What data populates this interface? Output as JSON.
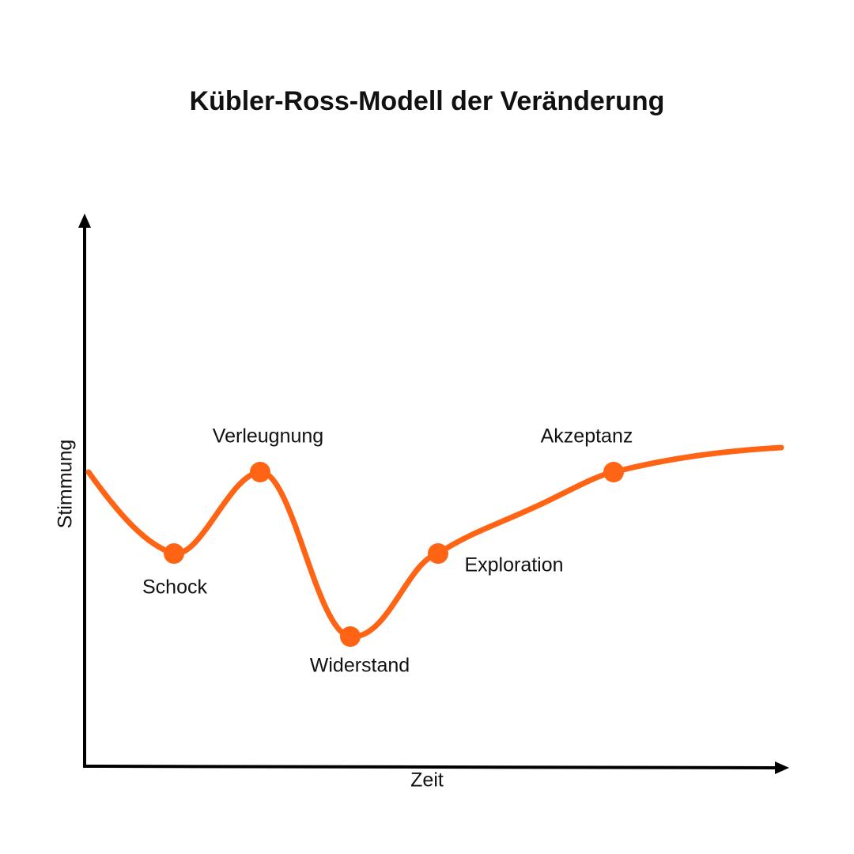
{
  "title": "Kübler-Ross-Modell der Veränderung",
  "axes": {
    "x": "Zeit",
    "y": "Stimmung"
  },
  "stages": [
    {
      "label": "Schock"
    },
    {
      "label": "Verleugnung"
    },
    {
      "label": "Widerstand"
    },
    {
      "label": "Exploration"
    },
    {
      "label": "Akzeptanz"
    }
  ]
}
